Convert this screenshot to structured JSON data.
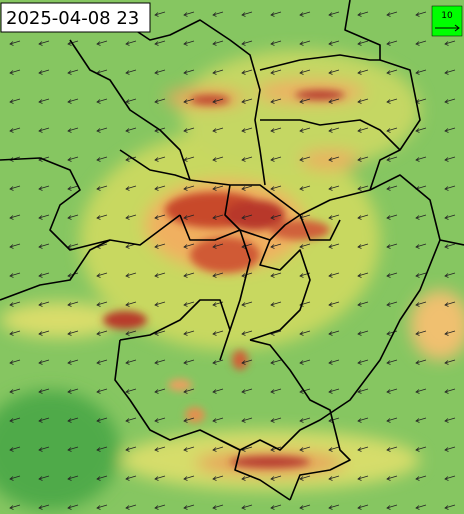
{
  "timestamp": "2025-04-08 23",
  "wind_scale": {
    "label": "10"
  }
}
